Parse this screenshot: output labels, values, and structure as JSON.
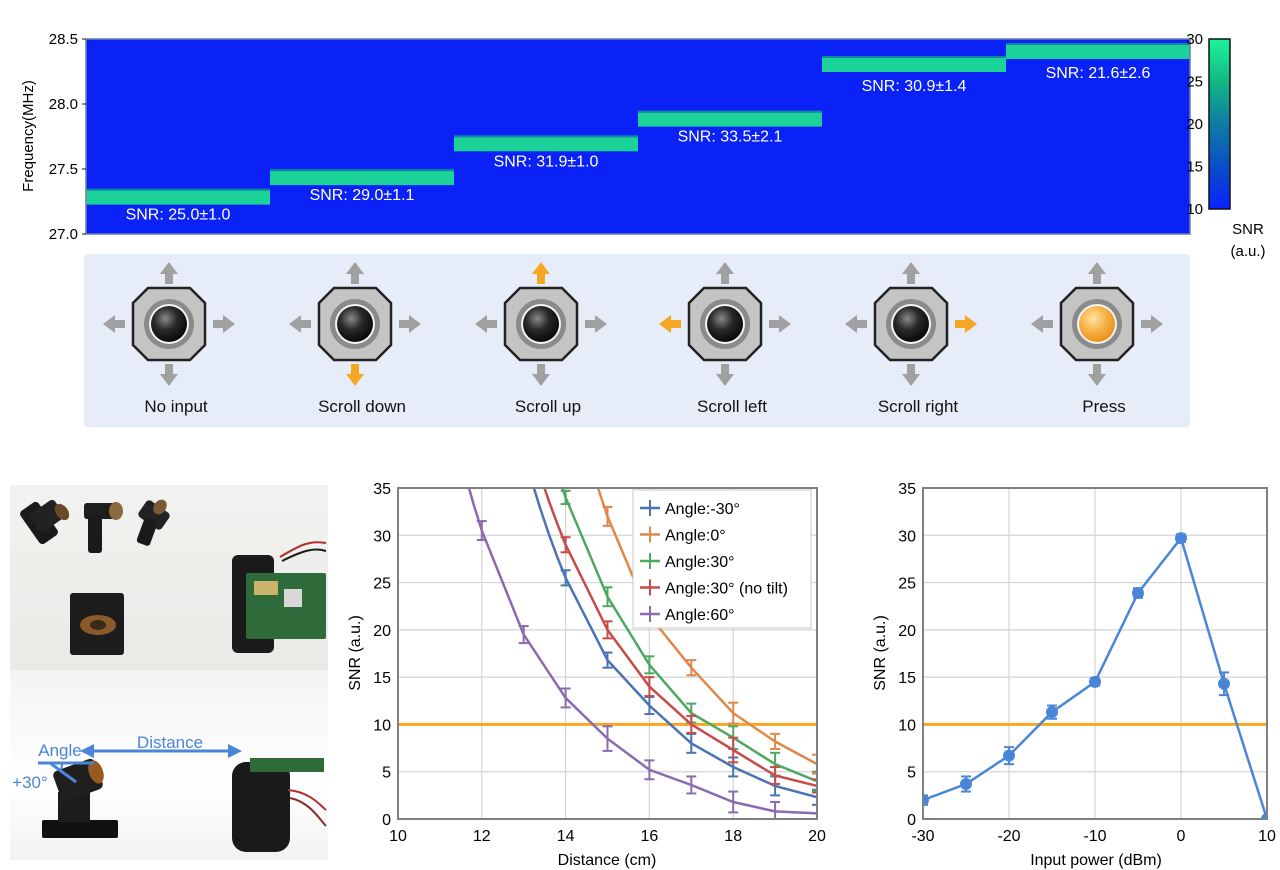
{
  "spectrogram": {
    "ylabel": "Frequency(MHz)",
    "yticks": [
      "27.0",
      "27.5",
      "28.0",
      "28.5"
    ],
    "ylim": [
      27.0,
      28.5
    ],
    "colorbar": {
      "ticks": [
        "10",
        "15",
        "20",
        "25",
        "30"
      ],
      "title_line1": "SNR",
      "title_line2": "(a.u.)",
      "range": [
        10,
        30
      ]
    },
    "segments": [
      {
        "label": "SNR: 25.0±1.0",
        "freq": 27.28
      },
      {
        "label": "SNR: 29.0±1.1",
        "freq": 27.43
      },
      {
        "label": "SNR: 31.9±1.0",
        "freq": 27.69
      },
      {
        "label": "SNR: 33.5±2.1",
        "freq": 27.88
      },
      {
        "label": "SNR: 30.9±1.4",
        "freq": 28.3
      },
      {
        "label": "SNR: 21.6±2.6",
        "freq": 28.4
      }
    ]
  },
  "joystick": {
    "colors": {
      "active": "#f5a623",
      "inactive": "#a0a0a0"
    },
    "states": [
      {
        "label": "No input",
        "active": "none"
      },
      {
        "label": "Scroll down",
        "active": "down"
      },
      {
        "label": "Scroll up",
        "active": "up"
      },
      {
        "label": "Scroll left",
        "active": "left"
      },
      {
        "label": "Scroll right",
        "active": "right"
      },
      {
        "label": "Press",
        "active": "press"
      }
    ]
  },
  "photos": {
    "angle_label": "Angle",
    "distance_label": "Distance",
    "tilt_label": "+30°"
  },
  "chart_data": [
    {
      "type": "line",
      "xlabel": "Distance (cm)",
      "ylabel": "SNR (a.u.)",
      "xlim": [
        10,
        20
      ],
      "ylim": [
        0,
        35
      ],
      "xticks": [
        10,
        12,
        14,
        16,
        18,
        20
      ],
      "yticks": [
        0,
        5,
        10,
        15,
        20,
        25,
        30,
        35
      ],
      "threshold": 10,
      "grid": true,
      "legend": "top-right",
      "series": [
        {
          "name": "Angle:-30°",
          "color": "#4a74b4",
          "x": [
            14,
            15,
            16,
            17,
            18,
            19,
            20
          ],
          "y": [
            25.5,
            16.8,
            12.0,
            8.0,
            5.5,
            3.5,
            2.3
          ],
          "err": [
            0.8,
            0.8,
            0.9,
            1.0,
            1.0,
            1.0,
            0.8
          ]
        },
        {
          "name": "Angle:0°",
          "color": "#e0874a",
          "x": [
            15,
            16,
            17,
            18,
            19,
            20
          ],
          "y": [
            32.0,
            21.5,
            16.0,
            11.2,
            8.2,
            5.8
          ],
          "err": [
            1.0,
            1.1,
            0.8,
            1.1,
            0.8,
            1.0
          ]
        },
        {
          "name": "Angle:30°",
          "color": "#4ea860",
          "x": [
            14,
            15,
            16,
            17,
            18,
            19,
            20
          ],
          "y": [
            34.0,
            23.5,
            16.3,
            11.2,
            8.6,
            5.8,
            4.0
          ],
          "err": [
            0.7,
            1.0,
            0.9,
            1.0,
            1.2,
            1.2,
            1.0
          ]
        },
        {
          "name": "Angle:30° (no tilt)",
          "color": "#c84b4b",
          "x": [
            14,
            15,
            16,
            17,
            18,
            19,
            20
          ],
          "y": [
            29.0,
            20.0,
            14.0,
            10.0,
            7.3,
            4.6,
            3.5
          ],
          "err": [
            0.8,
            0.9,
            1.0,
            0.9,
            1.3,
            0.9,
            0.7
          ]
        },
        {
          "name": "Angle:60°",
          "color": "#8a6bb0",
          "x": [
            12,
            13,
            14,
            15,
            16,
            17,
            18,
            19
          ],
          "y": [
            30.5,
            19.5,
            12.8,
            8.5,
            5.2,
            3.6,
            1.8,
            0.8
          ],
          "err": [
            1.0,
            0.9,
            1.0,
            1.3,
            1.0,
            0.9,
            1.1,
            1.0
          ]
        }
      ]
    },
    {
      "type": "line",
      "xlabel": "Input power (dBm)",
      "ylabel": "SNR (a.u.)",
      "xlim": [
        -30,
        10
      ],
      "ylim": [
        0,
        35
      ],
      "xticks": [
        -30,
        -20,
        -10,
        0,
        10
      ],
      "yticks": [
        0,
        5,
        10,
        15,
        20,
        25,
        30,
        35
      ],
      "threshold": 10,
      "grid": true,
      "series": [
        {
          "name": "",
          "color": "#4a86d8",
          "x": [
            -30,
            -25,
            -20,
            -15,
            -10,
            -5,
            0,
            5,
            10
          ],
          "y": [
            2.0,
            3.7,
            6.7,
            11.3,
            14.5,
            23.9,
            29.7,
            14.3,
            0.0
          ],
          "err": [
            0.5,
            0.8,
            0.9,
            0.7,
            0.4,
            0.5,
            0.4,
            1.2,
            0.0
          ]
        }
      ]
    }
  ]
}
